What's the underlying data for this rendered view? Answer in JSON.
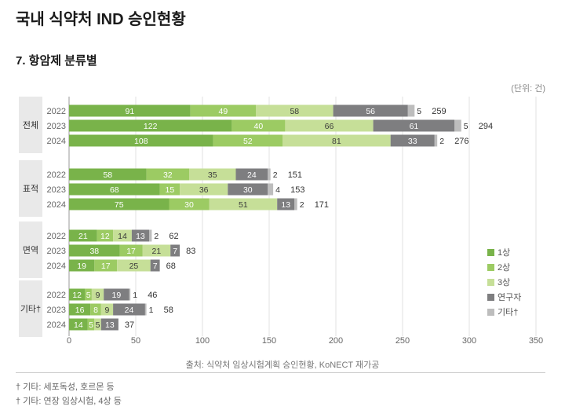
{
  "page": {
    "title": "국내 식약처 IND 승인현황",
    "subtitle": "7. 항암제 분류별",
    "unit": "(단위: 건)",
    "source": "출처: 식약처 임상시험계획 승인현황, KoNECT 재가공",
    "notes": [
      "† 기타: 세포독성, 호르몬 등",
      "† 기타: 연장 임상시험, 4상 등"
    ]
  },
  "chart_data": {
    "type": "bar",
    "orientation": "horizontal",
    "stacked": true,
    "xlim": [
      0,
      350
    ],
    "xticks": [
      0,
      50,
      100,
      150,
      200,
      250,
      300,
      350
    ],
    "legend_position": "right",
    "legend": [
      {
        "name": "1상",
        "color": "#79B34A"
      },
      {
        "name": "2상",
        "color": "#9CCB63"
      },
      {
        "name": "3상",
        "color": "#C6DF98"
      },
      {
        "name": "연구자",
        "color": "#7E7E80"
      },
      {
        "name": "기타†",
        "color": "#BDBDBD"
      }
    ],
    "groups": [
      {
        "name": "전체",
        "rows": [
          {
            "year": "2022",
            "values": [
              91,
              49,
              58,
              56,
              5
            ],
            "total": 259
          },
          {
            "year": "2023",
            "values": [
              122,
              40,
              66,
              61,
              5
            ],
            "total": 294
          },
          {
            "year": "2024",
            "values": [
              108,
              52,
              81,
              33,
              2
            ],
            "total": 276
          }
        ]
      },
      {
        "name": "표적",
        "rows": [
          {
            "year": "2022",
            "values": [
              58,
              32,
              35,
              24,
              2
            ],
            "total": 151
          },
          {
            "year": "2023",
            "values": [
              68,
              15,
              36,
              30,
              4
            ],
            "total": 153
          },
          {
            "year": "2024",
            "values": [
              75,
              30,
              51,
              13,
              2
            ],
            "total": 171
          }
        ]
      },
      {
        "name": "면역",
        "rows": [
          {
            "year": "2022",
            "values": [
              21,
              12,
              14,
              13,
              2
            ],
            "total": 62
          },
          {
            "year": "2023",
            "values": [
              38,
              17,
              21,
              7,
              0
            ],
            "total": 83
          },
          {
            "year": "2024",
            "values": [
              19,
              17,
              25,
              7,
              0
            ],
            "total": 68
          }
        ]
      },
      {
        "name": "기타†",
        "rows": [
          {
            "year": "2022",
            "values": [
              12,
              5,
              9,
              19,
              1
            ],
            "total": 46
          },
          {
            "year": "2023",
            "values": [
              16,
              8,
              9,
              24,
              1
            ],
            "total": 58
          },
          {
            "year": "2024",
            "values": [
              14,
              5,
              5,
              13,
              0
            ],
            "total": 37
          }
        ]
      }
    ]
  }
}
